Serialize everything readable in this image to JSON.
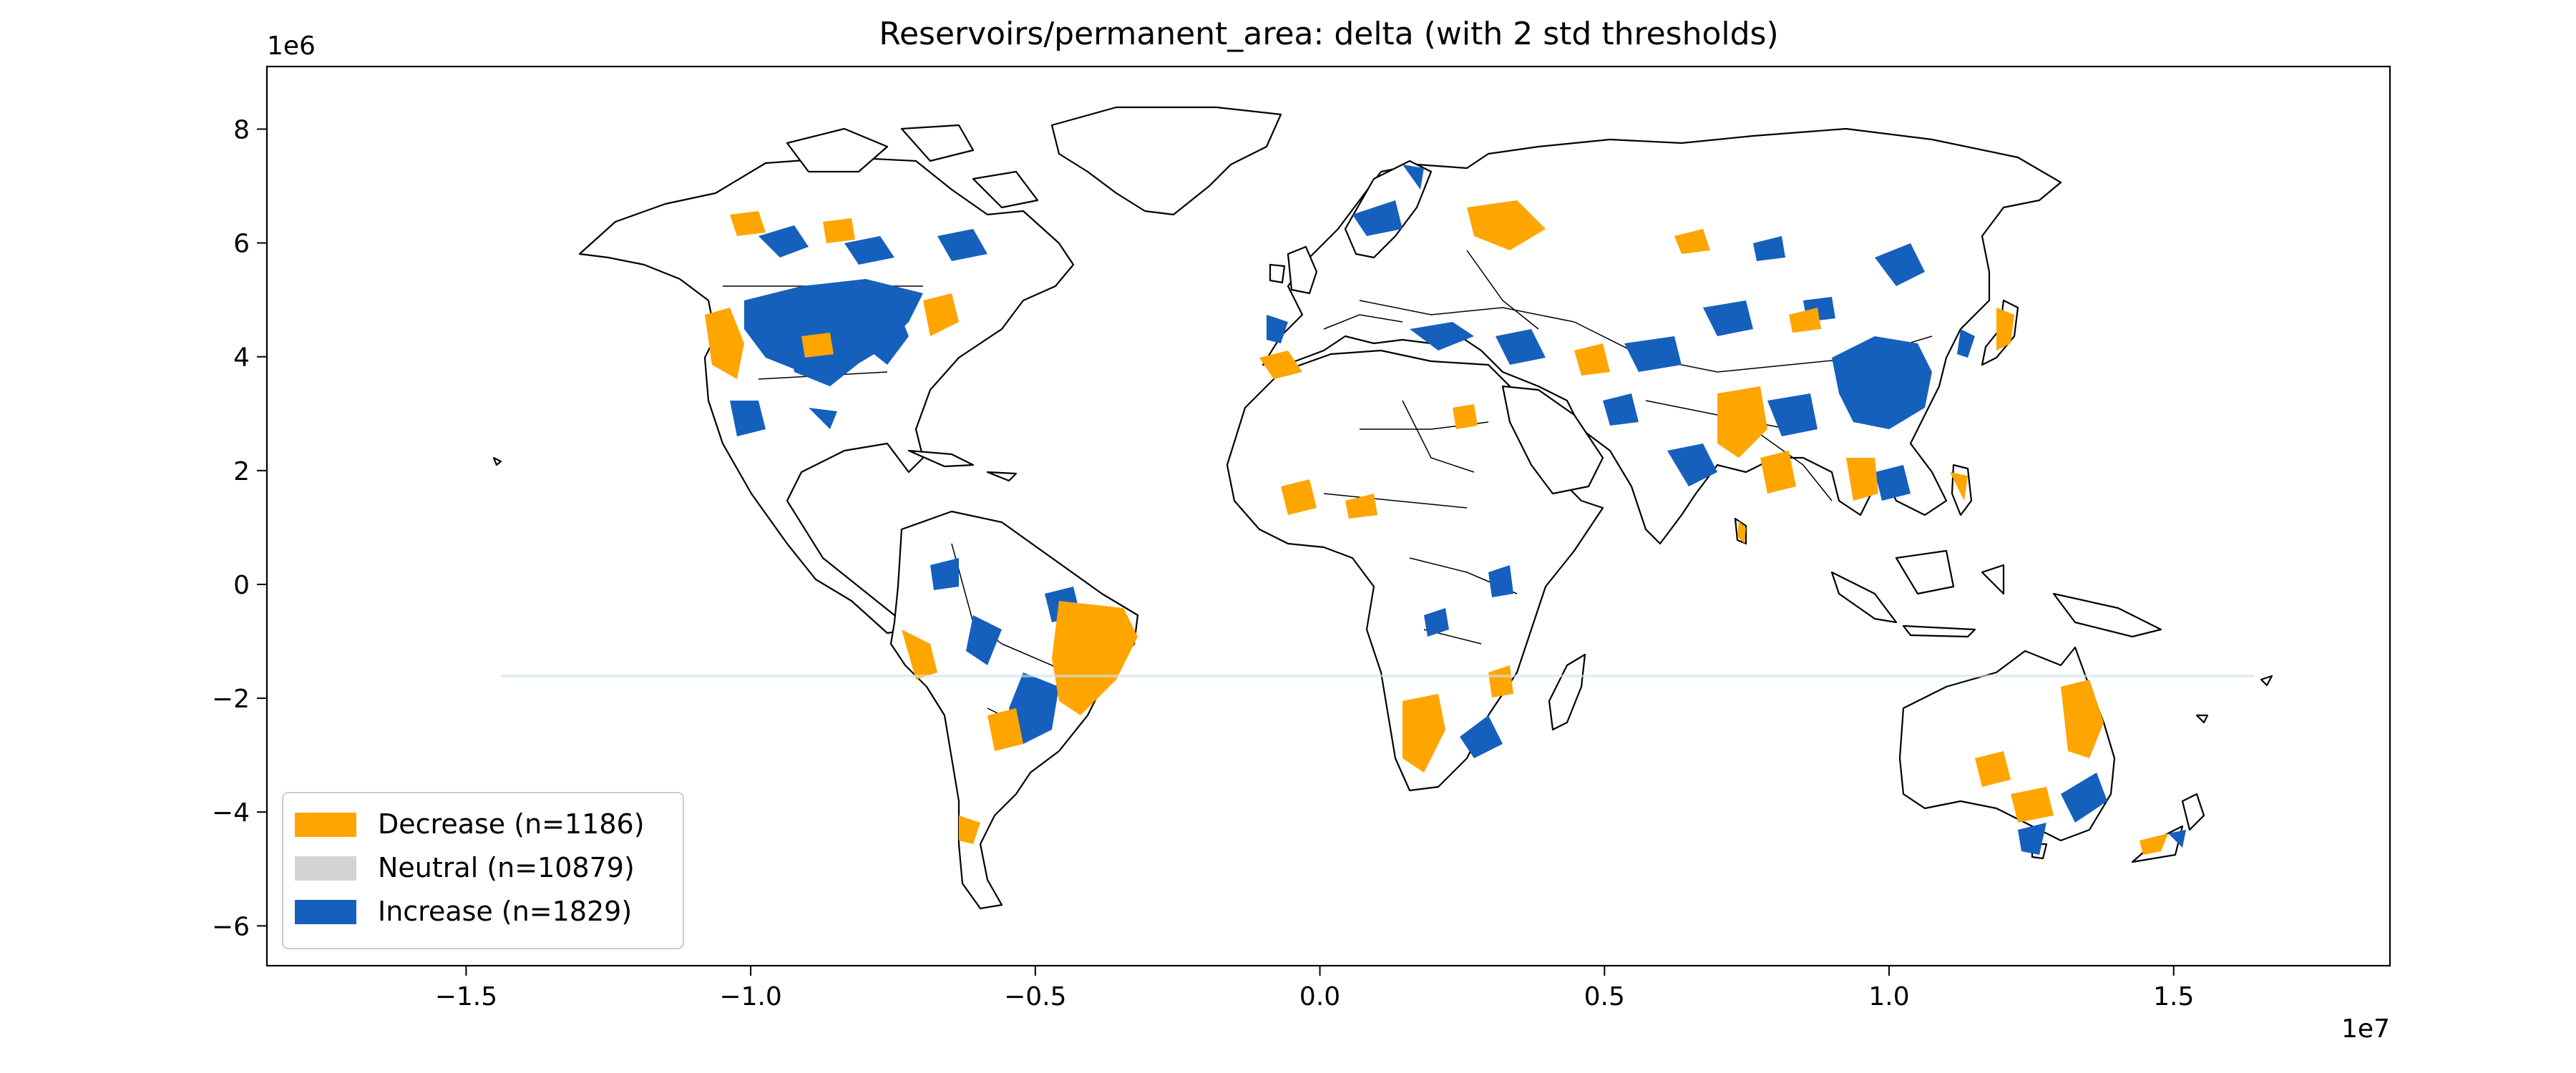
{
  "figure": {
    "title": "Reservoirs/permanent_area: delta (with 2 std thresholds)",
    "y_offset_label": "1e6",
    "x_offset_label": "1e7"
  },
  "colors": {
    "decrease": "#ffa500",
    "neutral": "#d3d3d3",
    "increase": "#1560bd",
    "land_edge": "#000000",
    "background": "#ffffff"
  },
  "legend": {
    "position": "lower-left",
    "entries": [
      {
        "key": "decrease",
        "label": "Decrease (n=1186)"
      },
      {
        "key": "neutral",
        "label": "Neutral (n=10879)"
      },
      {
        "key": "increase",
        "label": "Increase (n=1829)"
      }
    ]
  },
  "chart_data": {
    "type": "map",
    "projection": "Equal-area world map (projected metres)",
    "xlim": [
      -18500000,
      18800000
    ],
    "ylim": [
      -6700000,
      9100000
    ],
    "x_ticks": [
      -15000000,
      -10000000,
      -5000000,
      0,
      5000000,
      10000000,
      15000000
    ],
    "x_tick_labels": [
      "−1.5",
      "−1.0",
      "−0.5",
      "0.0",
      "0.5",
      "1.0",
      "1.5"
    ],
    "y_ticks": [
      -6000000,
      -4000000,
      -2000000,
      0,
      2000000,
      4000000,
      6000000,
      8000000
    ],
    "y_tick_labels": [
      "−6",
      "−4",
      "−2",
      "0",
      "2",
      "4",
      "6",
      "8"
    ],
    "categories": [
      {
        "name": "Decrease",
        "count": 1186
      },
      {
        "name": "Neutral",
        "count": 10879
      },
      {
        "name": "Increase",
        "count": 1829
      }
    ]
  }
}
